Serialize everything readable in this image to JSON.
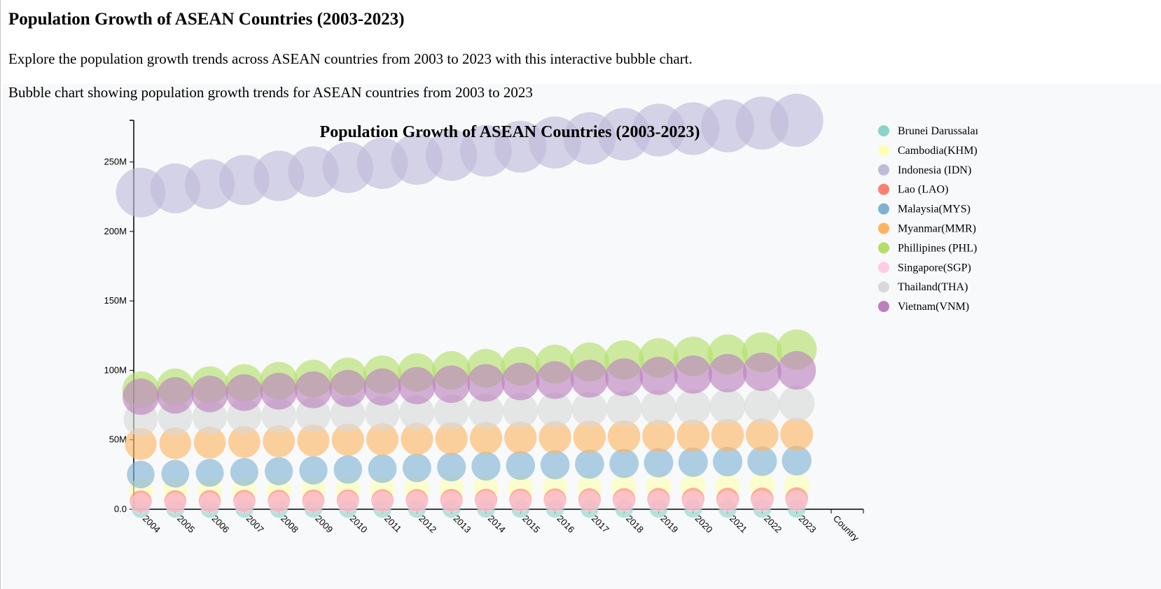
{
  "page": {
    "title": "Population Growth of ASEAN Countries (2003-2023)",
    "intro": "Explore the population growth trends across ASEAN countries from 2003 to 2023 with this interactive bubble chart.",
    "chart_description": "Bubble chart showing population growth trends for ASEAN countries from 2003 to 2023"
  },
  "chart_data": {
    "type": "scatter",
    "title": "Population Growth of ASEAN Countries (2003-2023)",
    "x": [
      "2004",
      "2005",
      "2006",
      "2007",
      "2008",
      "2009",
      "2010",
      "2011",
      "2012",
      "2013",
      "2014",
      "2015",
      "2016",
      "2017",
      "2018",
      "2019",
      "2020",
      "2021",
      "2022",
      "2023"
    ],
    "x_extra_tick": "Country",
    "xlabel": "",
    "ylabel": "",
    "ylim": [
      0,
      280000000
    ],
    "yticks": [
      {
        "value": 0,
        "label": "0.0"
      },
      {
        "value": 50000000,
        "label": "50M"
      },
      {
        "value": 100000000,
        "label": "100M"
      },
      {
        "value": 150000000,
        "label": "150M"
      },
      {
        "value": 200000000,
        "label": "200M"
      },
      {
        "value": 250000000,
        "label": "250M"
      }
    ],
    "grid": false,
    "legend_position": "right",
    "series": [
      {
        "name": "Brunei Darussalam",
        "legend_label": "Brunei Darussalaı",
        "color": "#8dd3c7",
        "values": [
          0.37,
          0.37,
          0.38,
          0.38,
          0.39,
          0.39,
          0.4,
          0.4,
          0.41,
          0.41,
          0.42,
          0.42,
          0.42,
          0.43,
          0.43,
          0.44,
          0.44,
          0.44,
          0.45,
          0.45
        ]
      },
      {
        "name": "Cambodia(KHM)",
        "color": "#ffffb3",
        "values": [
          13.2,
          13.4,
          13.6,
          13.8,
          14.0,
          14.2,
          14.4,
          14.6,
          14.8,
          15.0,
          15.2,
          15.4,
          15.6,
          15.8,
          16.0,
          16.2,
          16.4,
          16.6,
          16.8,
          17.0
        ]
      },
      {
        "name": "Indonesia (IDN)",
        "color": "#bebada",
        "values": [
          228,
          231,
          234,
          237,
          240,
          243,
          246,
          249,
          252,
          255,
          258,
          261,
          264,
          267,
          270,
          273,
          274,
          276,
          278,
          280
        ]
      },
      {
        "name": "Lao (LAO)",
        "color": "#fb8072",
        "values": [
          5.7,
          5.8,
          5.9,
          6.0,
          6.1,
          6.2,
          6.3,
          6.4,
          6.5,
          6.6,
          6.7,
          6.8,
          6.9,
          7.0,
          7.1,
          7.2,
          7.3,
          7.4,
          7.5,
          7.6
        ]
      },
      {
        "name": "Malaysia(MYS)",
        "color": "#80b1d3",
        "values": [
          25.0,
          25.6,
          26.2,
          26.8,
          27.4,
          28.0,
          28.6,
          29.2,
          29.8,
          30.4,
          31.0,
          31.5,
          32.0,
          32.5,
          33.0,
          33.5,
          33.9,
          34.3,
          34.6,
          35.0
        ]
      },
      {
        "name": "Myanmar(MMR)",
        "color": "#fdb462",
        "values": [
          47,
          47.5,
          48,
          48.5,
          49,
          49.5,
          50,
          50.3,
          50.6,
          50.9,
          51.2,
          51.5,
          51.8,
          52.1,
          52.4,
          52.7,
          53,
          53.3,
          53.6,
          54
        ]
      },
      {
        "name": "Phillipines (PHL)",
        "color": "#b3de69",
        "values": [
          86,
          88,
          89.5,
          91,
          92.5,
          94,
          95.5,
          97,
          98.5,
          100,
          101.5,
          103,
          104.5,
          106,
          107.5,
          109,
          110,
          111.5,
          113,
          115
        ]
      },
      {
        "name": "Singapore(SGP)",
        "color": "#fccde5",
        "values": [
          4.2,
          4.3,
          4.4,
          4.6,
          4.8,
          4.9,
          5.1,
          5.2,
          5.3,
          5.4,
          5.5,
          5.5,
          5.6,
          5.6,
          5.6,
          5.7,
          5.7,
          5.5,
          5.6,
          5.9
        ]
      },
      {
        "name": "Thailand(THA)",
        "color": "#d9d9d9",
        "values": [
          65,
          66,
          66.5,
          67,
          67.5,
          68,
          68.5,
          69,
          69.5,
          70,
          70.5,
          71,
          71.5,
          72,
          72.5,
          73,
          73.5,
          74,
          74.5,
          76
        ]
      },
      {
        "name": "Vietnam(VNM)",
        "color": "#bc80bd",
        "values": [
          81,
          82,
          83,
          84,
          85,
          86,
          87,
          88,
          89,
          90,
          91,
          92,
          93,
          94,
          95,
          96,
          97,
          98,
          99,
          100
        ]
      }
    ]
  }
}
